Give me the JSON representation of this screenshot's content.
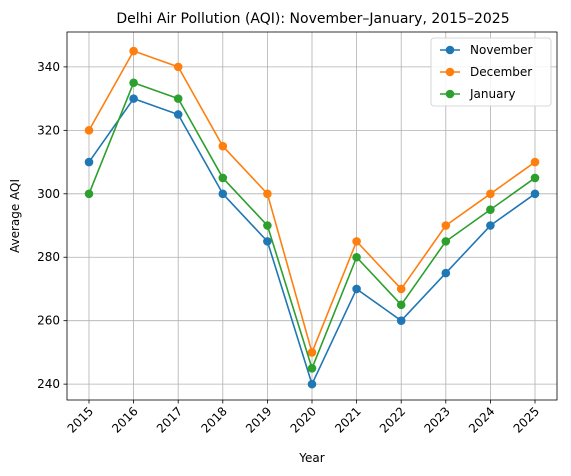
{
  "chart_data": {
    "type": "line",
    "title": "Delhi Air Pollution (AQI): November–January, 2015–2025",
    "xlabel": "Year",
    "ylabel": "Average AQI",
    "x": [
      "2015",
      "2016",
      "2017",
      "2018",
      "2019",
      "2020",
      "2021",
      "2022",
      "2023",
      "2024",
      "2025"
    ],
    "ylim": [
      235,
      351
    ],
    "yticks": [
      240,
      260,
      280,
      300,
      320,
      340
    ],
    "grid": true,
    "legend_position": "top-right",
    "series": [
      {
        "name": "November",
        "color": "#1f77b4",
        "values": [
          310,
          330,
          325,
          300,
          285,
          240,
          270,
          260,
          275,
          290,
          300
        ]
      },
      {
        "name": "December",
        "color": "#ff7f0e",
        "values": [
          320,
          345,
          340,
          315,
          300,
          250,
          285,
          270,
          290,
          300,
          310
        ]
      },
      {
        "name": "January",
        "color": "#2ca02c",
        "values": [
          300,
          335,
          330,
          305,
          290,
          245,
          280,
          265,
          285,
          295,
          305
        ]
      }
    ]
  }
}
